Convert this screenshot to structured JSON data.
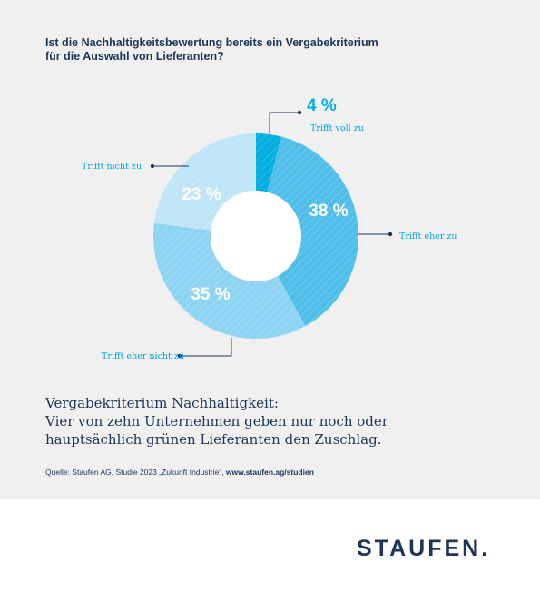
{
  "question": {
    "line1": "Ist die Nachhaltigkeitsbewertung bereits ein Vergabekriterium",
    "line2": "für die Auswahl von Lieferanten?"
  },
  "chart_data": {
    "type": "pie",
    "title": "Ist die Nachhaltigkeitsbewertung bereits ein Vergabekriterium für die Auswahl von Lieferanten?",
    "categories": [
      "Trifft voll zu",
      "Trifft eher zu",
      "Trifft eher nicht zu",
      "Trifft nicht zu"
    ],
    "values": [
      4,
      38,
      35,
      23
    ],
    "value_labels": [
      "4 %",
      "38 %",
      "35 %",
      "23 %"
    ],
    "colors": [
      "#00aee0",
      "#4fbfe9",
      "#8dd3f2",
      "#bfe5f8"
    ],
    "donut": true
  },
  "headline": {
    "line1": "Vergabekriterium Nachhaltigkeit:",
    "line2": "Vier von zehn Unternehmen geben nur noch oder",
    "line3": "hauptsächlich grünen Lieferanten den Zuschlag."
  },
  "source": {
    "text": "Quelle: Staufen AG, Studie 2023 „Zukunft Industrie“, ",
    "link": "www.staufen.ag/studien"
  },
  "logo": {
    "text": "STAUFEN."
  }
}
